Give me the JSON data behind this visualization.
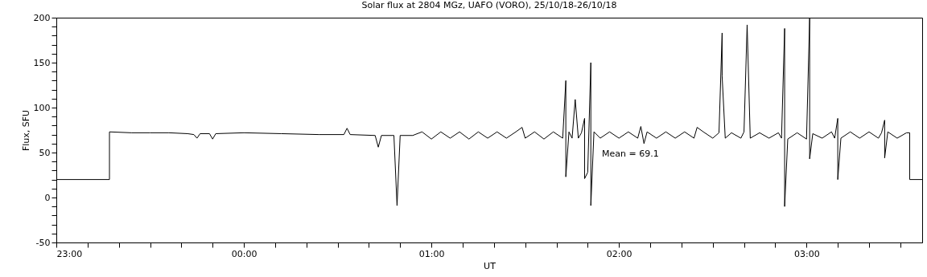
{
  "chart_data": {
    "type": "line",
    "title": "Solar flux at 2804 MGz, UAFO (VORO),  25/10/18-26/10/18",
    "xlabel": "UT",
    "ylabel": "Flux, SFU",
    "annotations": [
      "Mean =    69.1"
    ],
    "x": [
      "--10-25T23:00",
      "--10-25T23:17",
      "--10-25T23:17",
      "--10-25T23:24",
      "--10-25T23:30",
      "--10-25T23:36",
      "--10-25T23:42",
      "--10-25T23:44",
      "--10-25T23:45",
      "--10-25T23:46",
      "--10-25T23:49",
      "--10-25T23:50",
      "--10-25T23:51",
      "--10-26T00:00",
      "--10-26T00:12",
      "--10-26T00:24",
      "--10-26T00:32",
      "--10-26T00:33",
      "--10-26T00:34",
      "--10-26T00:42",
      "--10-26T00:43",
      "--10-26T00:44",
      "--10-26T00:48",
      "--10-26T00:49",
      "--10-26T00:50",
      "--10-26T00:54",
      "--10-26T00:57",
      "--10-26T01:00",
      "--10-26T01:03",
      "--10-26T01:06",
      "--10-26T01:09",
      "--10-26T01:12",
      "--10-26T01:15",
      "--10-26T01:18",
      "--10-26T01:21",
      "--10-26T01:24",
      "--10-26T01:27",
      "--10-26T01:29",
      "--10-26T01:30",
      "--10-26T01:33",
      "--10-26T01:36",
      "--10-26T01:39",
      "--10-26T01:42",
      "--10-26T01:43",
      "--10-26T01:43",
      "--10-26T01:44",
      "--10-26T01:45",
      "--10-26T01:46",
      "--10-26T01:47",
      "--10-26T01:48",
      "--10-26T01:49",
      "--10-26T01:49",
      "--10-26T01:50",
      "--10-26T01:51",
      "--10-26T01:51",
      "--10-26T01:52",
      "--10-26T01:54",
      "--10-26T01:57",
      "--10-26T02:00",
      "--10-26T02:03",
      "--10-26T02:06",
      "--10-26T02:07",
      "--10-26T02:08",
      "--10-26T02:09",
      "--10-26T02:12",
      "--10-26T02:15",
      "--10-26T02:18",
      "--10-26T02:21",
      "--10-26T02:24",
      "--10-26T02:25",
      "--10-26T02:27",
      "--10-26T02:30",
      "--10-26T02:32",
      "--10-26T02:33",
      "--10-26T02:33",
      "--10-26T02:34",
      "--10-26T02:36",
      "--10-26T02:39",
      "--10-26T02:40",
      "--10-26T02:41",
      "--10-26T02:42",
      "--10-26T02:45",
      "--10-26T02:48",
      "--10-26T02:51",
      "--10-26T02:52",
      "--10-26T02:53",
      "--10-26T02:53",
      "--10-26T02:54",
      "--10-26T02:57",
      "--10-26T03:00",
      "--10-26T03:01",
      "--10-26T03:01",
      "--10-26T03:02",
      "--10-26T03:05",
      "--10-26T03:08",
      "--10-26T03:09",
      "--10-26T03:10",
      "--10-26T03:10",
      "--10-26T03:11",
      "--10-26T03:14",
      "--10-26T03:17",
      "--10-26T03:20",
      "--10-26T03:23",
      "--10-26T03:24",
      "--10-26T03:25",
      "--10-26T03:25",
      "--10-26T03:26",
      "--10-26T03:29",
      "--10-26T03:32",
      "--10-26T03:33",
      "--10-26T03:33",
      "--10-26T03:37"
    ],
    "series": [
      {
        "color": "#000000",
        "values": [
          20,
          20,
          73,
          72,
          72,
          72,
          71,
          70,
          66,
          71,
          71,
          65,
          71,
          72,
          71,
          70,
          70,
          77,
          70,
          69,
          56,
          69,
          69,
          -9,
          69,
          69,
          73,
          65,
          73,
          66,
          73,
          65,
          73,
          66,
          73,
          66,
          73,
          78,
          66,
          73,
          65,
          73,
          66,
          130,
          23,
          73,
          66,
          109,
          66,
          72,
          88,
          21,
          28,
          150,
          -9,
          73,
          66,
          73,
          66,
          73,
          66,
          79,
          60,
          73,
          66,
          73,
          66,
          73,
          66,
          78,
          73,
          66,
          72,
          183,
          135,
          66,
          72,
          66,
          73,
          192,
          66,
          72,
          66,
          72,
          66,
          188,
          -10,
          65,
          72,
          65,
          199,
          43,
          71,
          66,
          73,
          66,
          88,
          20,
          66,
          73,
          66,
          73,
          66,
          72,
          86,
          44,
          73,
          66,
          72,
          72,
          20,
          20
        ]
      }
    ],
    "xlim": [
      "--10-25T23:00",
      "--10-26T03:37"
    ],
    "xticks": [
      {
        "value": "--10-25T23:00",
        "label": "23:00"
      },
      {
        "value": "--10-25T23:10",
        "label": null
      },
      {
        "value": "--10-25T23:20",
        "label": null
      },
      {
        "value": "--10-25T23:30",
        "label": null
      },
      {
        "value": "--10-25T23:40",
        "label": null
      },
      {
        "value": "--10-25T23:50",
        "label": null
      },
      {
        "value": "--10-26T00:00",
        "label": "00:00"
      },
      {
        "value": "--10-26T00:10",
        "label": null
      },
      {
        "value": "--10-26T00:20",
        "label": null
      },
      {
        "value": "--10-26T00:30",
        "label": null
      },
      {
        "value": "--10-26T00:40",
        "label": null
      },
      {
        "value": "--10-26T00:50",
        "label": null
      },
      {
        "value": "--10-26T01:00",
        "label": "01:00"
      },
      {
        "value": "--10-26T01:10",
        "label": null
      },
      {
        "value": "--10-26T01:20",
        "label": null
      },
      {
        "value": "--10-26T01:30",
        "label": null
      },
      {
        "value": "--10-26T01:40",
        "label": null
      },
      {
        "value": "--10-26T01:50",
        "label": null
      },
      {
        "value": "--10-26T02:00",
        "label": "02:00"
      },
      {
        "value": "--10-26T02:10",
        "label": null
      },
      {
        "value": "--10-26T02:20",
        "label": null
      },
      {
        "value": "--10-26T02:30",
        "label": null
      },
      {
        "value": "--10-26T02:40",
        "label": null
      },
      {
        "value": "--10-26T02:50",
        "label": null
      },
      {
        "value": "--10-26T03:00",
        "label": "03:00"
      },
      {
        "value": "--10-26T03:10",
        "label": null
      },
      {
        "value": "--10-26T03:20",
        "label": null
      },
      {
        "value": "--10-26T03:30",
        "label": null
      }
    ],
    "ylim": [
      -50,
      200
    ],
    "yticks": [
      -50,
      {
        "value": -40,
        "label": null
      },
      {
        "value": -30,
        "label": null
      },
      {
        "value": -20,
        "label": null
      },
      {
        "value": -10,
        "label": null
      },
      0,
      {
        "value": 10,
        "label": null
      },
      {
        "value": 20,
        "label": null
      },
      {
        "value": 30,
        "label": null
      },
      {
        "value": 40,
        "label": null
      },
      50,
      {
        "value": 60,
        "label": null
      },
      {
        "value": 70,
        "label": null
      },
      {
        "value": 80,
        "label": null
      },
      {
        "value": 90,
        "label": null
      },
      100,
      {
        "value": 110,
        "label": null
      },
      {
        "value": 120,
        "label": null
      },
      {
        "value": 130,
        "label": null
      },
      {
        "value": 140,
        "label": null
      },
      150,
      {
        "value": 160,
        "label": null
      },
      {
        "value": 170,
        "label": null
      },
      {
        "value": 180,
        "label": null
      },
      {
        "value": 190,
        "label": null
      },
      200
    ],
    "grid": false,
    "marker": "none",
    "line_style": "solid"
  }
}
